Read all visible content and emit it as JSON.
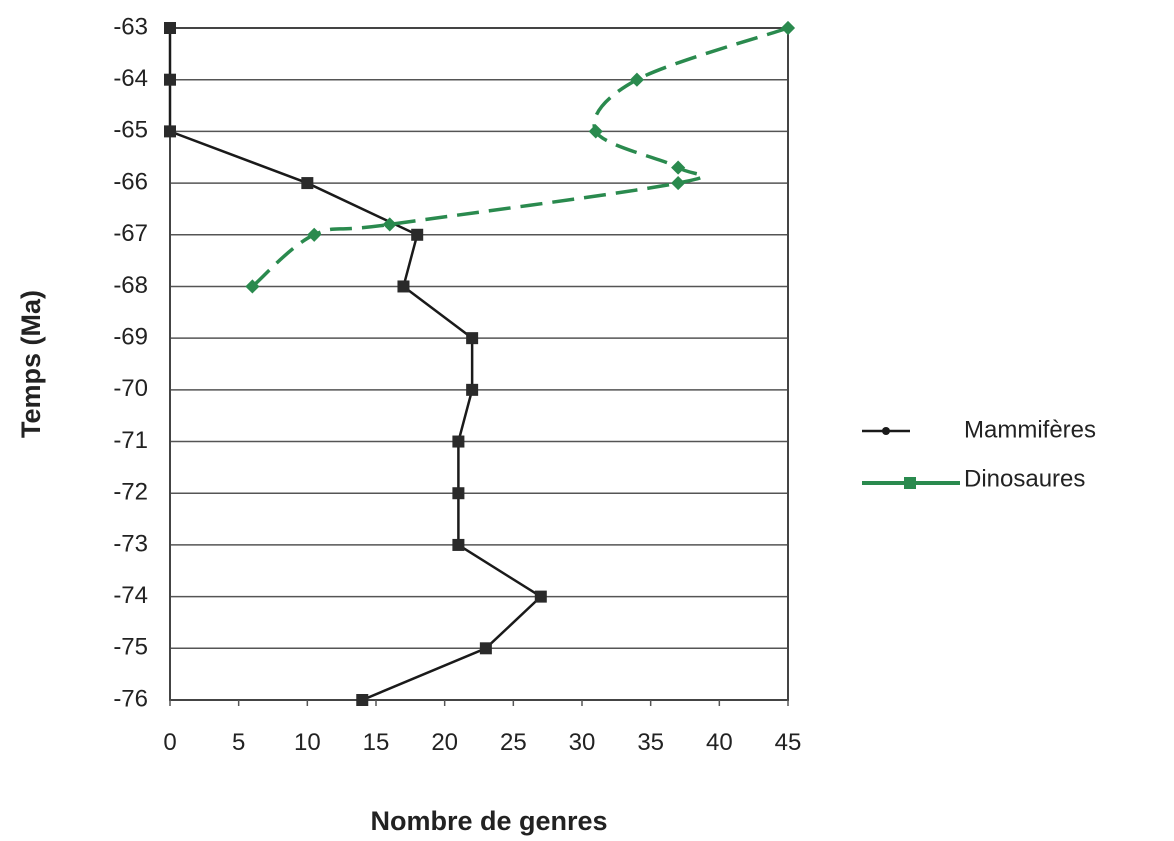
{
  "chart_data": {
    "type": "line",
    "orientation": "vertical-y-is-time",
    "xlabel": "Nombre de genres",
    "ylabel": "Temps (Ma)",
    "xlim": [
      0,
      45
    ],
    "ylim": [
      -76,
      -63
    ],
    "x_ticks": [
      "0",
      "5",
      "10",
      "15",
      "20",
      "25",
      "30",
      "35",
      "40",
      "45"
    ],
    "y_ticks": [
      "-63",
      "-64",
      "-65",
      "-66",
      "-67",
      "-68",
      "-69",
      "-70",
      "-71",
      "-72",
      "-73",
      "-74",
      "-75",
      "-76"
    ],
    "grid": "horizontal",
    "legend_position": "right",
    "series": [
      {
        "name": "Mammifères",
        "color": "#1a1a1a",
        "style": "solid",
        "points": [
          {
            "x": 0,
            "y": -63
          },
          {
            "x": 0,
            "y": -64
          },
          {
            "x": 0,
            "y": -65
          },
          {
            "x": 10,
            "y": -66
          },
          {
            "x": 18,
            "y": -67
          },
          {
            "x": 17,
            "y": -68
          },
          {
            "x": 22,
            "y": -69
          },
          {
            "x": 22,
            "y": -70
          },
          {
            "x": 21,
            "y": -71
          },
          {
            "x": 21,
            "y": -72
          },
          {
            "x": 21,
            "y": -73
          },
          {
            "x": 27,
            "y": -74
          },
          {
            "x": 23,
            "y": -75
          },
          {
            "x": 14,
            "y": -76
          }
        ]
      },
      {
        "name": "Dinosaures",
        "color": "#2a8a4e",
        "style": "dashed",
        "points": [
          {
            "x": 45,
            "y": -63
          },
          {
            "x": 34,
            "y": -64
          },
          {
            "x": 31,
            "y": -65
          },
          {
            "x": 37,
            "y": -65.7
          },
          {
            "x": 37,
            "y": -66
          },
          {
            "x": 16,
            "y": -66.8
          },
          {
            "x": 10.5,
            "y": -67
          },
          {
            "x": 6,
            "y": -68
          }
        ]
      }
    ]
  }
}
